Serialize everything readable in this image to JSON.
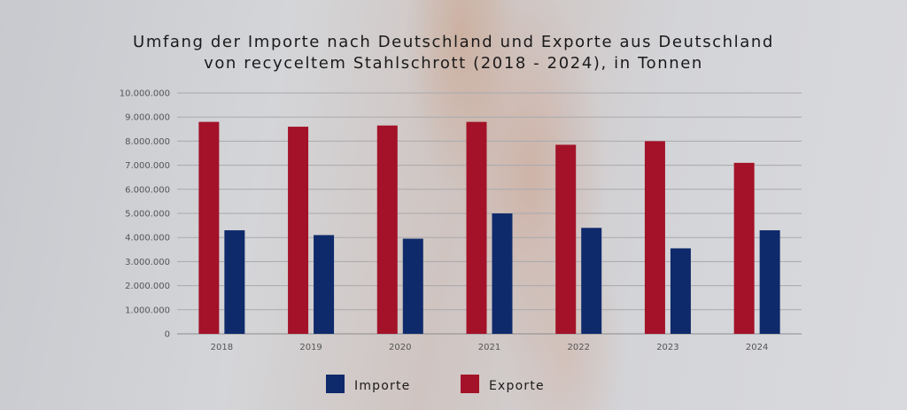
{
  "chart_data": {
    "type": "bar",
    "title_lines": [
      "Umfang der Importe nach Deutschland und Exporte aus Deutschland",
      "von recyceltem Stahlschrott (2018 - 2024), in Tonnen"
    ],
    "categories": [
      "2018",
      "2019",
      "2020",
      "2021",
      "2022",
      "2023",
      "2024"
    ],
    "series": [
      {
        "name": "Exporte",
        "color": "#a31228",
        "values": [
          8800000,
          8600000,
          8650000,
          8800000,
          7850000,
          8000000,
          7100000
        ]
      },
      {
        "name": "Importe",
        "color": "#0f2a6b",
        "values": [
          4300000,
          4100000,
          3950000,
          5000000,
          4400000,
          3550000,
          4300000
        ]
      }
    ],
    "yticks": [
      "0",
      "1.000.000",
      "2.000.000",
      "3.000.000",
      "4.000.000",
      "5.000.000",
      "6.000.000",
      "7.000.000",
      "8.000.000",
      "9.000.000",
      "10.000.000"
    ],
    "ylim": [
      0,
      10000000
    ],
    "grid": true,
    "legend": {
      "placement": "bottom-center",
      "items": [
        {
          "label": "Importe",
          "color": "#0f2a6b"
        },
        {
          "label": "Exporte",
          "color": "#a31228"
        }
      ]
    }
  }
}
